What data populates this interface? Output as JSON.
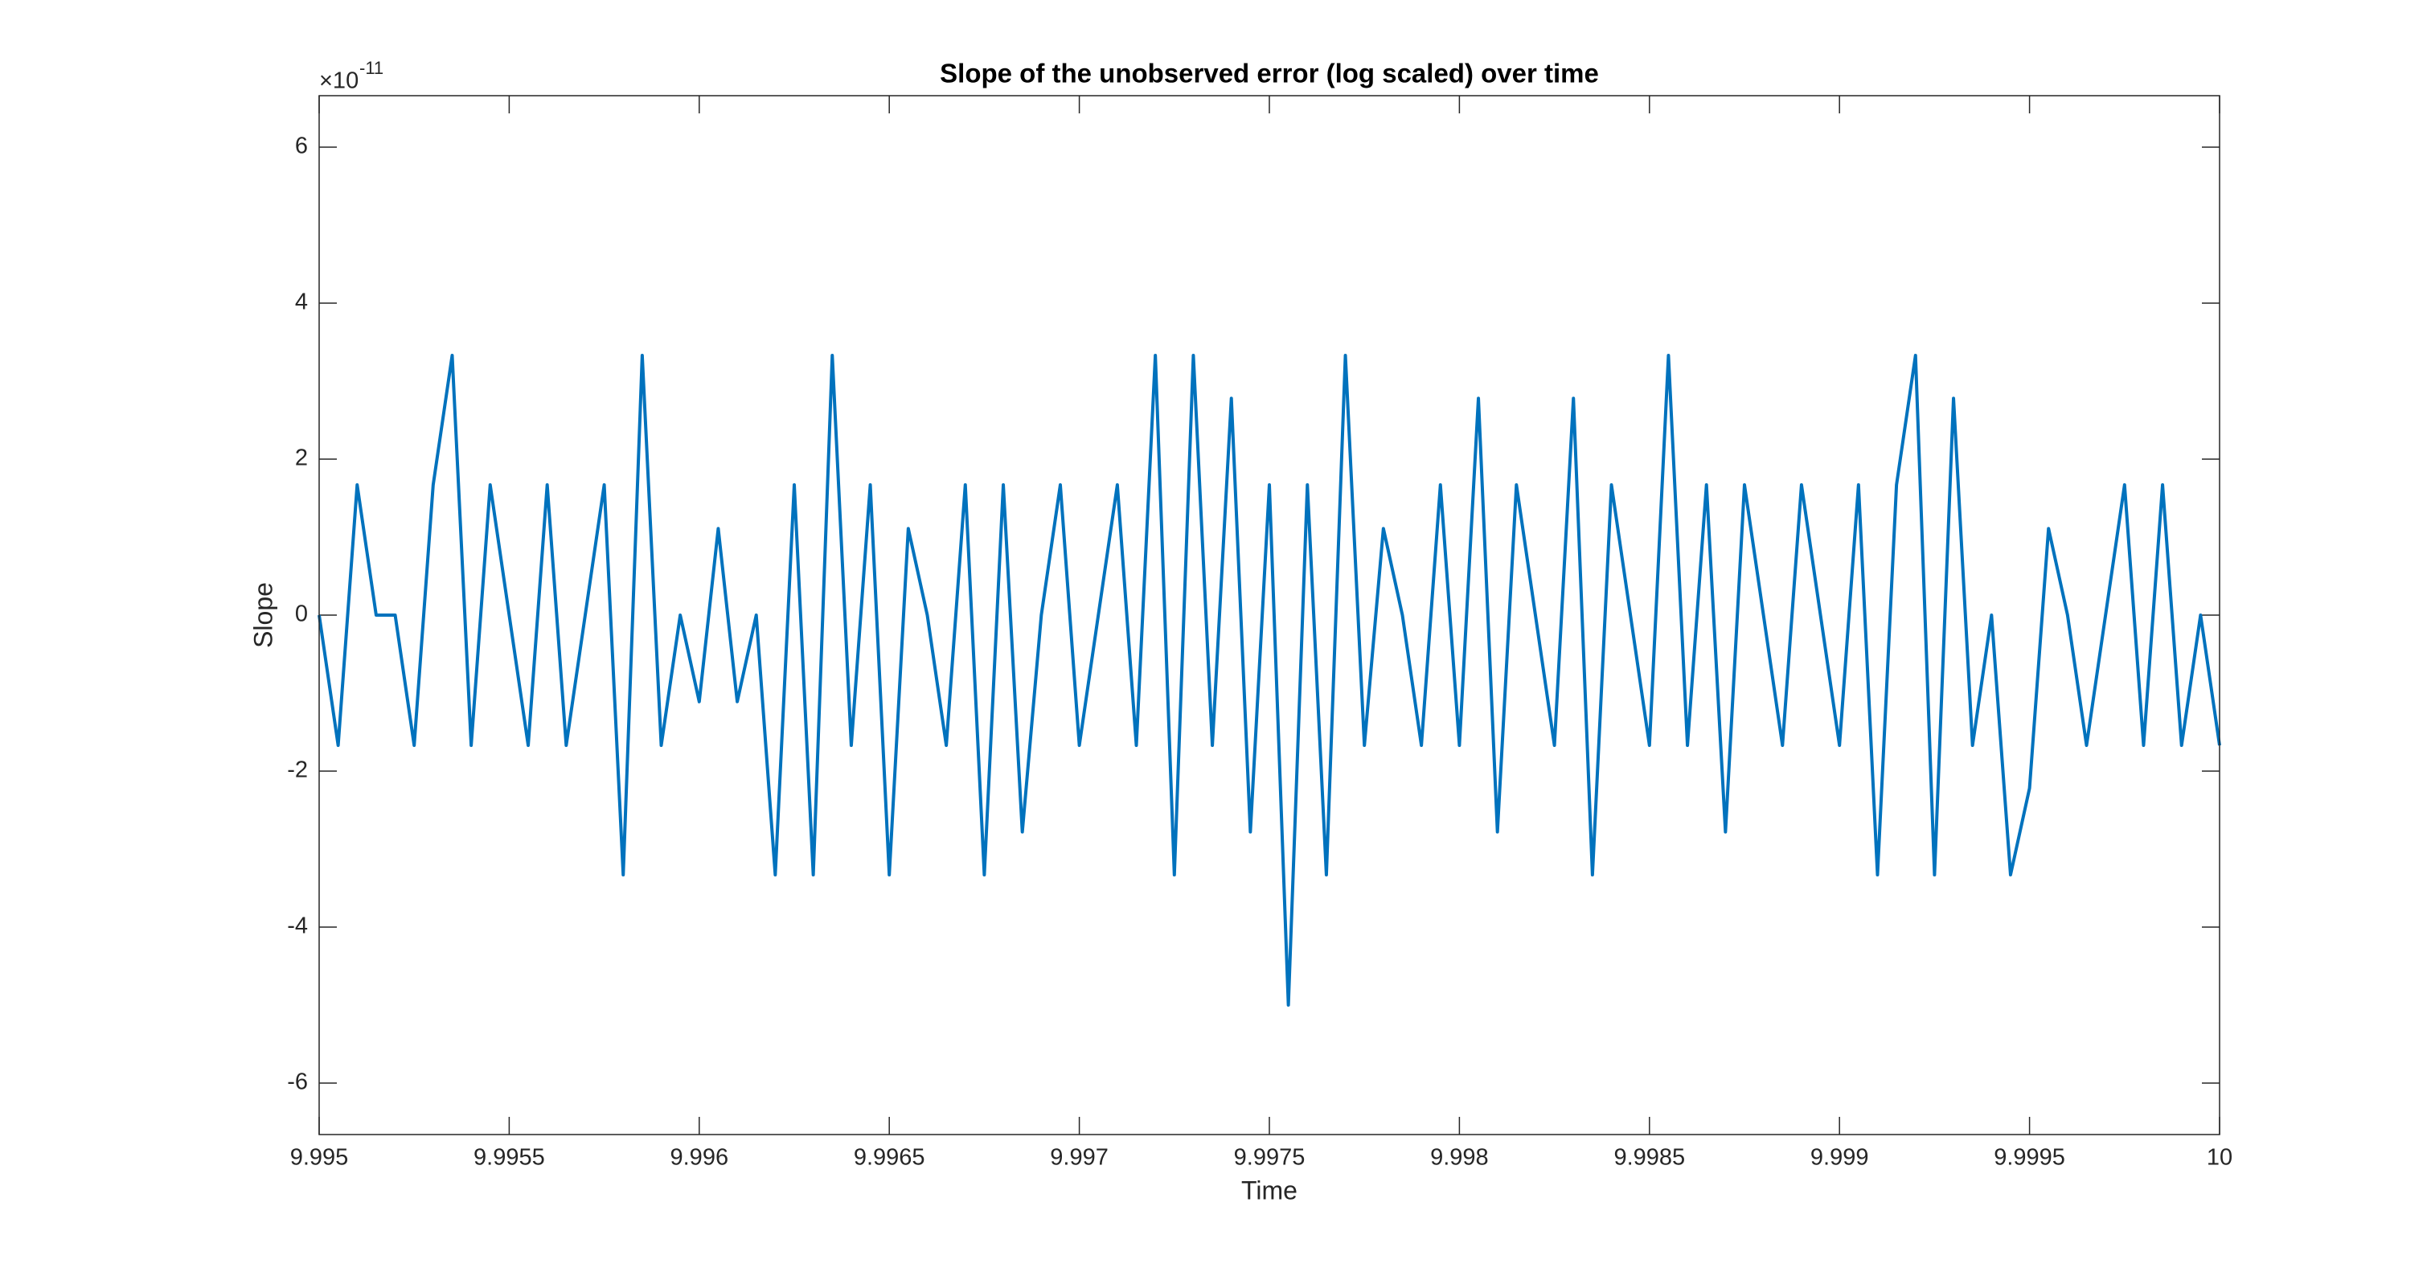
{
  "chart_data": {
    "type": "line",
    "title": "Slope of the unobserved error (log scaled) over time",
    "x_label": "Time",
    "y_label": "Slope",
    "y_scale_base": "×10",
    "y_scale_exponent": "-11",
    "x": [
      9.995,
      9.99505,
      9.9951,
      9.99515,
      9.9952,
      9.99525,
      9.9953,
      9.99535,
      9.9954,
      9.99545,
      9.9955,
      9.99555,
      9.9956,
      9.99565,
      9.9957,
      9.99575,
      9.9958,
      9.99585,
      9.9959,
      9.99595,
      9.996,
      9.99605,
      9.9961,
      9.99615,
      9.9962,
      9.99625,
      9.9963,
      9.99635,
      9.9964,
      9.99645,
      9.9965,
      9.99655,
      9.9966,
      9.99665,
      9.9967,
      9.99675,
      9.9968,
      9.99685,
      9.9969,
      9.99695,
      9.997,
      9.99705,
      9.9971,
      9.99715,
      9.9972,
      9.99725,
      9.9973,
      9.99735,
      9.9974,
      9.99745,
      9.9975,
      9.99755,
      9.9976,
      9.99765,
      9.9977,
      9.99775,
      9.9978,
      9.99785,
      9.9979,
      9.99795,
      9.998,
      9.99805,
      9.9981,
      9.99815,
      9.9982,
      9.99825,
      9.9983,
      9.99835,
      9.9984,
      9.99845,
      9.9985,
      9.99855,
      9.9986,
      9.99865,
      9.9987,
      9.99875,
      9.9988,
      9.99885,
      9.9989,
      9.99895,
      9.999,
      9.99905,
      9.9991,
      9.99915,
      9.9992,
      9.99925,
      9.9993,
      9.99935,
      9.9994,
      9.99945,
      9.9995,
      9.99955,
      9.9996,
      9.99965,
      9.9997,
      9.99975,
      9.9998,
      9.99985,
      9.9999,
      9.99995,
      10
    ],
    "series": [
      {
        "color": "#0072bd",
        "values": [
          0,
          -1.67,
          1.67,
          0,
          0,
          -1.67,
          1.67,
          3.33,
          -1.67,
          1.67,
          0,
          -1.67,
          1.67,
          -1.67,
          0,
          1.67,
          -3.33,
          3.33,
          -1.67,
          0,
          -1.11,
          1.11,
          -1.11,
          0,
          -3.33,
          1.67,
          -3.33,
          3.33,
          -1.67,
          1.67,
          -3.33,
          1.11,
          0,
          -1.67,
          1.67,
          -3.33,
          1.67,
          -2.78,
          0,
          1.67,
          -1.67,
          0,
          1.67,
          -1.67,
          3.33,
          -3.33,
          3.33,
          -1.67,
          2.78,
          -2.78,
          1.67,
          -5,
          1.67,
          -3.33,
          3.33,
          -1.67,
          1.11,
          0,
          -1.67,
          1.67,
          -1.67,
          2.78,
          -2.78,
          1.67,
          0,
          -1.67,
          2.78,
          -3.33,
          1.67,
          0,
          -1.67,
          3.33,
          -1.67,
          1.67,
          -2.78,
          1.67,
          0,
          -1.67,
          1.67,
          0,
          -1.67,
          1.67,
          -3.33,
          1.67,
          3.33,
          -3.33,
          2.78,
          -1.67,
          0,
          -3.33,
          -2.22,
          1.11,
          0,
          -1.67,
          0,
          1.67,
          -1.67,
          1.67,
          -1.67,
          0,
          -1.67
        ]
      }
    ],
    "xlim": [
      9.995,
      10
    ],
    "xticks": [
      9.995,
      9.9955,
      9.996,
      9.9965,
      9.997,
      9.9975,
      9.998,
      9.9985,
      9.999,
      9.9995,
      10
    ],
    "ylim": [
      -6.66,
      6.66
    ],
    "yticks": [
      -6,
      -4,
      -2,
      0,
      2,
      4,
      6
    ],
    "grid": false
  }
}
